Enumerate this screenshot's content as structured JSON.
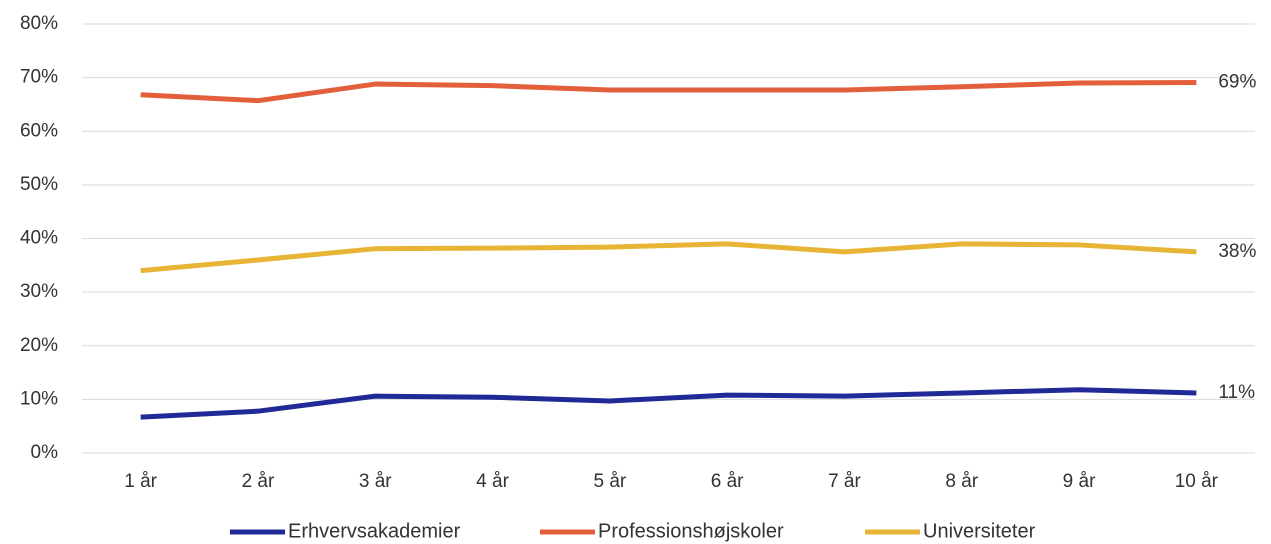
{
  "chart_data": {
    "type": "line",
    "categories": [
      "1 år",
      "2 år",
      "3 år",
      "4 år",
      "5 år",
      "6 år",
      "7 år",
      "8 år",
      "9 år",
      "10 år"
    ],
    "series": [
      {
        "name": "Erhvervsakademier",
        "color": "#1f2a96",
        "values": [
          6.7,
          7.8,
          10.6,
          10.4,
          9.7,
          10.8,
          10.6,
          11.2,
          11.8,
          11.2
        ],
        "value_labels": [
          null,
          null,
          null,
          null,
          null,
          null,
          null,
          null,
          null,
          "11%"
        ]
      },
      {
        "name": "Professionshøjskoler",
        "color": "#e35f3b",
        "values": [
          66.8,
          65.7,
          68.8,
          68.5,
          67.7,
          67.7,
          67.7,
          68.3,
          69.0,
          69.1
        ],
        "value_labels": [
          null,
          null,
          null,
          null,
          null,
          null,
          null,
          null,
          null,
          "69%"
        ]
      },
      {
        "name": "Universiteter",
        "color": "#e8b435",
        "values": [
          34.0,
          36.0,
          38.1,
          38.2,
          38.4,
          39.0,
          37.5,
          39.0,
          38.8,
          37.5
        ],
        "value_labels": [
          null,
          null,
          null,
          null,
          null,
          null,
          null,
          null,
          null,
          "38%"
        ]
      }
    ],
    "ylim": [
      0,
      80
    ],
    "yticks": [
      {
        "value": 0,
        "label": "0%"
      },
      {
        "value": 10,
        "label": "10%"
      },
      {
        "value": 20,
        "label": "20%"
      },
      {
        "value": 30,
        "label": "30%"
      },
      {
        "value": 40,
        "label": "40%"
      },
      {
        "value": 50,
        "label": "50%"
      },
      {
        "value": 60,
        "label": "60%"
      },
      {
        "value": 70,
        "label": "70%"
      },
      {
        "value": 80,
        "label": "80%"
      }
    ],
    "grid": true,
    "legend": "bottom"
  }
}
